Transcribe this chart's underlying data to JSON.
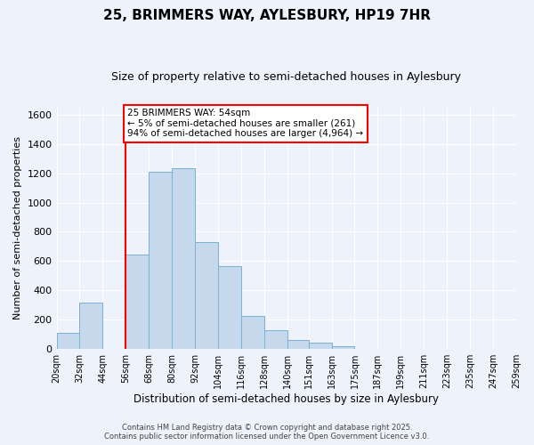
{
  "title": "25, BRIMMERS WAY, AYLESBURY, HP19 7HR",
  "subtitle": "Size of property relative to semi-detached houses in Aylesbury",
  "xlabel": "Distribution of semi-detached houses by size in Aylesbury",
  "ylabel": "Number of semi-detached properties",
  "bin_edges": [
    20,
    32,
    44,
    56,
    68,
    80,
    92,
    104,
    116,
    128,
    140,
    151,
    163,
    175,
    187,
    199,
    211,
    223,
    235,
    247,
    259
  ],
  "bin_labels": [
    "20sqm",
    "32sqm",
    "44sqm",
    "56sqm",
    "68sqm",
    "80sqm",
    "92sqm",
    "104sqm",
    "116sqm",
    "128sqm",
    "140sqm",
    "151sqm",
    "163sqm",
    "175sqm",
    "187sqm",
    "199sqm",
    "211sqm",
    "223sqm",
    "235sqm",
    "247sqm",
    "259sqm"
  ],
  "counts": [
    110,
    315,
    0,
    645,
    1210,
    1235,
    730,
    565,
    225,
    130,
    65,
    45,
    20,
    0,
    0,
    0,
    0,
    0,
    0,
    0
  ],
  "bar_color": "#c5d8ec",
  "bar_edge_color": "#7aafd4",
  "vline_x": 56,
  "vline_color": "red",
  "annotation_title": "25 BRIMMERS WAY: 54sqm",
  "annotation_line1": "← 5% of semi-detached houses are smaller (261)",
  "annotation_line2": "94% of semi-detached houses are larger (4,964) →",
  "ylim": [
    0,
    1650
  ],
  "yticks": [
    0,
    200,
    400,
    600,
    800,
    1000,
    1200,
    1400,
    1600
  ],
  "background_color": "#eef2fa",
  "grid_color": "white",
  "footer_line1": "Contains HM Land Registry data © Crown copyright and database right 2025.",
  "footer_line2": "Contains public sector information licensed under the Open Government Licence v3.0."
}
